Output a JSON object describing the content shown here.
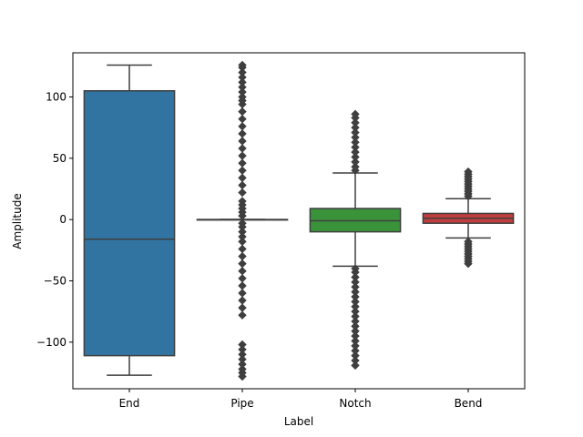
{
  "chart_data": {
    "type": "box",
    "title": "",
    "xlabel": "Label",
    "ylabel": "Amplitude",
    "ylim": [
      -138,
      136
    ],
    "yticks": [
      -100,
      -50,
      0,
      50,
      100
    ],
    "ytick_labels": [
      "−100",
      "−50",
      "0",
      "50",
      "100"
    ],
    "categories": [
      "End",
      "Pipe",
      "Notch",
      "Bend"
    ],
    "grid": false,
    "boxes": [
      {
        "category": "End",
        "color": "#3274a1",
        "whisker_low": -127,
        "q1": -111,
        "median": -16,
        "q3": 105,
        "whisker_high": 126,
        "fliers": []
      },
      {
        "category": "Pipe",
        "color": "#e1812c",
        "whisker_low": 0,
        "q1": 0,
        "median": 0,
        "q3": 0,
        "whisker_high": 0,
        "fliers": [
          -128,
          -125,
          -122,
          -118,
          -114,
          -110,
          -106,
          -102,
          -78,
          -72,
          -66,
          -60,
          -54,
          -48,
          -42,
          -36,
          -30,
          -24,
          -18,
          -14,
          -10,
          -6,
          -3,
          3,
          6,
          9,
          12,
          15,
          22,
          28,
          34,
          40,
          46,
          52,
          58,
          64,
          70,
          76,
          82,
          88,
          94,
          97,
          100,
          104,
          108,
          112,
          116,
          120,
          124,
          126
        ]
      },
      {
        "category": "Notch",
        "color": "#3a923a",
        "whisker_low": -38,
        "q1": -10,
        "median": -1,
        "q3": 9,
        "whisker_high": 38,
        "fliers": [
          -119,
          -115,
          -111,
          -107,
          -103,
          -99,
          -95,
          -91,
          -87,
          -83,
          -79,
          -75,
          -71,
          -67,
          -63,
          -59,
          -55,
          -51,
          -47,
          -43,
          -40,
          40,
          43,
          47,
          51,
          55,
          59,
          63,
          67,
          71,
          75,
          79,
          83,
          86
        ]
      },
      {
        "category": "Bend",
        "color": "#c03d3e",
        "whisker_low": -15,
        "q1": -3,
        "median": 1,
        "q3": 5,
        "whisker_high": 17,
        "fliers": [
          -36,
          -34,
          -32,
          -30,
          -28,
          -26,
          -24,
          -22,
          -20,
          -18,
          19,
          21,
          23,
          25,
          27,
          29,
          31,
          33,
          35,
          37,
          39
        ]
      }
    ]
  }
}
